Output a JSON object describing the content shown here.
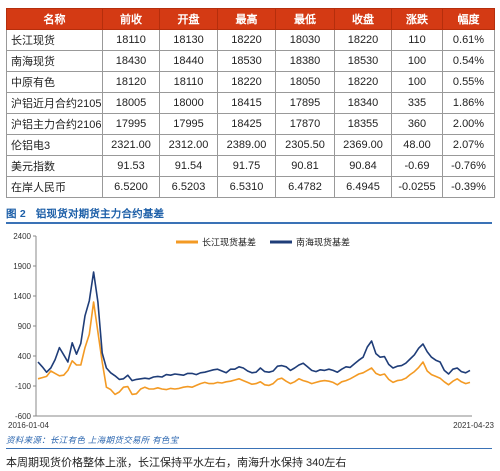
{
  "table": {
    "headers": [
      "名称",
      "前收",
      "开盘",
      "最高",
      "最低",
      "收盘",
      "涨跌",
      "幅度"
    ],
    "rows": [
      [
        "长江现货",
        "18110",
        "18130",
        "18220",
        "18030",
        "18220",
        "110",
        "0.61%"
      ],
      [
        "南海现货",
        "18430",
        "18440",
        "18530",
        "18380",
        "18530",
        "100",
        "0.54%"
      ],
      [
        "中原有色",
        "18120",
        "18110",
        "18220",
        "18050",
        "18220",
        "100",
        "0.55%"
      ],
      [
        "沪铝近月合约2105",
        "18005",
        "18000",
        "18415",
        "17895",
        "18340",
        "335",
        "1.86%"
      ],
      [
        "沪铝主力合约2106",
        "17995",
        "17995",
        "18425",
        "17870",
        "18355",
        "360",
        "2.00%"
      ],
      [
        "伦铝电3",
        "2321.00",
        "2312.00",
        "2389.00",
        "2305.50",
        "2369.00",
        "48.00",
        "2.07%"
      ],
      [
        "美元指数",
        "91.53",
        "91.54",
        "91.75",
        "90.81",
        "90.84",
        "-0.69",
        "-0.76%"
      ],
      [
        "在岸人民币",
        "6.5200",
        "6.5203",
        "6.5310",
        "6.4782",
        "6.4945",
        "-0.0255",
        "-0.39%"
      ]
    ]
  },
  "figure": {
    "number": "图 2",
    "title": "铝现货对期货主力合约基差"
  },
  "chart_data": {
    "type": "line",
    "xlabel": "",
    "ylabel": "",
    "ylim": [
      -600,
      2400
    ],
    "yticks": [
      2400,
      1900,
      1400,
      900,
      400,
      -100,
      -600
    ],
    "x_range_labels": [
      "2016-01-04",
      "2021-04-23"
    ],
    "legend_position": "top-right",
    "grid": false,
    "series": [
      {
        "name": "长江现货基差",
        "color": "#f39a24",
        "values": [
          20,
          40,
          60,
          150,
          110,
          70,
          80,
          160,
          320,
          250,
          250,
          540,
          760,
          1300,
          800,
          300,
          -120,
          -160,
          -240,
          -200,
          -120,
          -110,
          -240,
          -230,
          -150,
          -120,
          -150,
          -150,
          -130,
          -150,
          -160,
          -140,
          -150,
          -140,
          -120,
          -110,
          -120,
          -90,
          -60,
          -40,
          -60,
          -60,
          -40,
          -50,
          -30,
          -20,
          0,
          20,
          -10,
          -40,
          -70,
          -60,
          -30,
          -80,
          -90,
          -60,
          10,
          30,
          -20,
          -60,
          -30,
          20,
          -10,
          -30,
          -60,
          -40,
          -20,
          -10,
          -20,
          -40,
          -80,
          -30,
          -10,
          20,
          60,
          100,
          120,
          160,
          200,
          110,
          80,
          100,
          10,
          -40,
          -10,
          0,
          30,
          90,
          140,
          210,
          300,
          150,
          90,
          60,
          30,
          -30,
          -80,
          -20,
          20,
          -30,
          -60,
          -40
        ]
      },
      {
        "name": "南海现货基差",
        "color": "#1f3d78",
        "values": [
          300,
          220,
          130,
          200,
          340,
          540,
          420,
          300,
          620,
          430,
          610,
          1070,
          1320,
          1800,
          1300,
          450,
          200,
          120,
          70,
          10,
          20,
          80,
          -10,
          10,
          20,
          30,
          20,
          50,
          60,
          50,
          90,
          80,
          100,
          90,
          80,
          110,
          110,
          90,
          120,
          130,
          150,
          170,
          180,
          150,
          120,
          180,
          180,
          220,
          200,
          150,
          120,
          130,
          200,
          140,
          130,
          150,
          230,
          240,
          220,
          160,
          200,
          250,
          280,
          220,
          160,
          140,
          170,
          160,
          180,
          160,
          130,
          180,
          220,
          210,
          270,
          330,
          380,
          550,
          650,
          440,
          380,
          390,
          260,
          200,
          230,
          240,
          280,
          350,
          420,
          530,
          600,
          470,
          380,
          330,
          300,
          160,
          100,
          180,
          200,
          140,
          120,
          160
        ]
      }
    ]
  },
  "source_note": "资料来源：长江有色  上海期货交易所  有色宝",
  "body_text": "本周期现货价格整体上涨，长江保持平水左右，南海升水保持 340左右"
}
